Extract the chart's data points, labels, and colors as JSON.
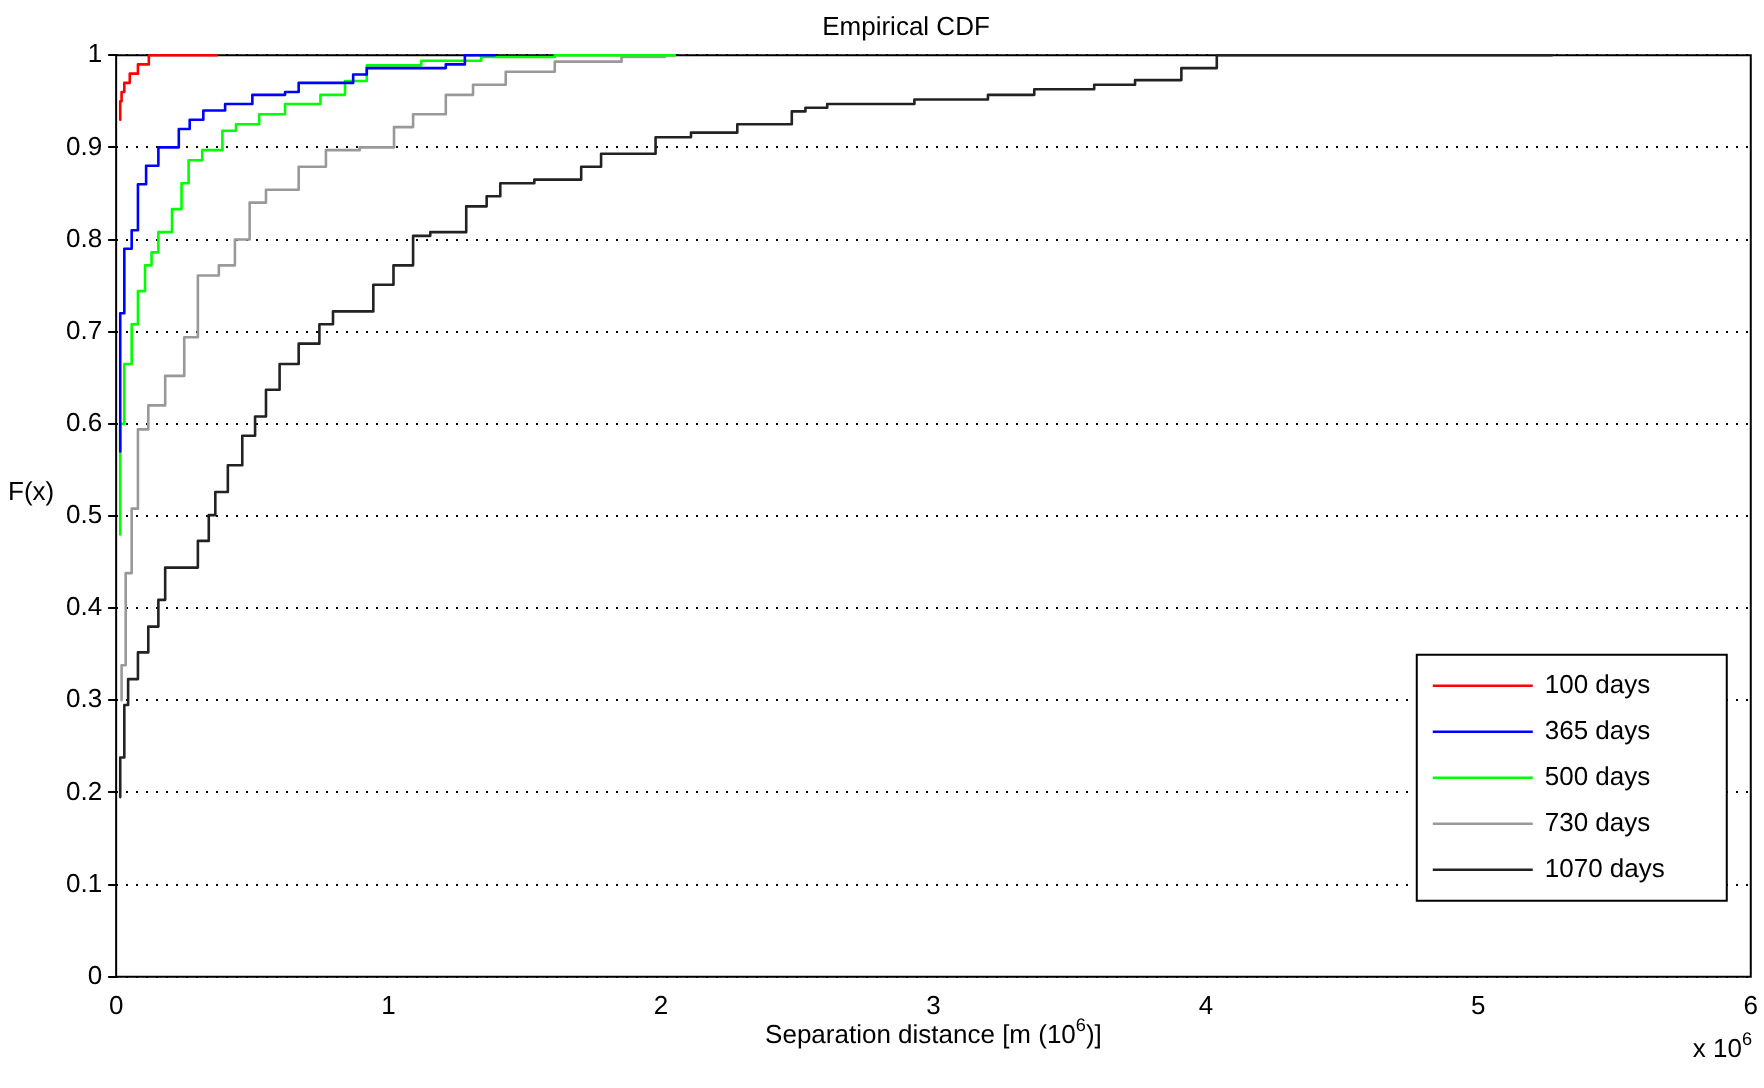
{
  "chart_data": {
    "type": "step",
    "title": "Empirical CDF",
    "xlabel": "Separation distance [m (10$^{6}$)]",
    "ylabel": "F(x)",
    "xlim": [
      0,
      6
    ],
    "xticks": [
      0,
      1,
      2,
      3,
      4,
      5,
      6
    ],
    "ylim": [
      0,
      1
    ],
    "yticks": [
      0,
      0.1,
      0.2,
      0.3,
      0.4,
      0.5,
      0.6,
      0.7,
      0.8,
      0.9,
      1
    ],
    "grid": "y",
    "legend": "bottom right",
    "annotations": [
      "x 10$^{6}$"
    ],
    "series": [
      {
        "name": "100 days",
        "color": "#ff0000",
        "x": [
          0.015,
          0.02,
          0.03,
          0.05,
          0.08,
          0.12,
          0.19,
          0.37
        ],
        "values": [
          0.93,
          0.95,
          0.96,
          0.97,
          0.98,
          0.99,
          1,
          1
        ]
      },
      {
        "name": "365 days",
        "color": "#0000ff",
        "x": [
          0.015,
          0.03,
          0.057,
          0.08,
          0.11,
          0.155,
          0.23,
          0.27,
          0.32,
          0.4,
          0.5,
          0.62,
          0.67,
          0.87,
          0.92,
          1.21,
          1.28,
          1.39
        ],
        "values": [
          0.57,
          0.72,
          0.79,
          0.81,
          0.86,
          0.88,
          0.9,
          0.92,
          0.93,
          0.94,
          0.947,
          0.957,
          0.96,
          0.97,
          0.979,
          0.986,
          0.99,
          1
        ]
      },
      {
        "name": "500 days",
        "color": "#00ff00",
        "x": [
          0.015,
          0.03,
          0.057,
          0.08,
          0.106,
          0.13,
          0.155,
          0.205,
          0.24,
          0.266,
          0.316,
          0.39,
          0.44,
          0.525,
          0.62,
          0.75,
          0.84,
          0.92,
          1.12,
          1.34,
          1.61,
          2.05
        ],
        "values": [
          0.48,
          0.6,
          0.665,
          0.708,
          0.744,
          0.772,
          0.786,
          0.808,
          0.833,
          0.861,
          0.886,
          0.897,
          0.918,
          0.925,
          0.936,
          0.947,
          0.957,
          0.972,
          0.989,
          0.994,
          0.998,
          1
        ]
      },
      {
        "name": "730 days",
        "color": "#999999",
        "x": [
          0.02,
          0.035,
          0.057,
          0.08,
          0.118,
          0.18,
          0.25,
          0.3,
          0.377,
          0.436,
          0.49,
          0.55,
          0.67,
          0.77,
          0.894,
          1.02,
          1.09,
          1.21,
          1.31,
          1.43,
          1.61,
          1.855,
          2.015,
          2.05
        ],
        "values": [
          0.3,
          0.338,
          0.438,
          0.508,
          0.594,
          0.62,
          0.652,
          0.694,
          0.761,
          0.772,
          0.8,
          0.84,
          0.854,
          0.879,
          0.897,
          0.9,
          0.922,
          0.936,
          0.957,
          0.968,
          0.982,
          0.993,
          0.998,
          1
        ]
      },
      {
        "name": "1070 days",
        "color": "#222222",
        "x": [
          0.015,
          0.03,
          0.044,
          0.08,
          0.118,
          0.155,
          0.18,
          0.217,
          0.3,
          0.34,
          0.364,
          0.41,
          0.463,
          0.51,
          0.55,
          0.6,
          0.67,
          0.746,
          0.796,
          0.944,
          1.018,
          1.09,
          1.153,
          1.285,
          1.36,
          1.41,
          1.535,
          1.707,
          1.78,
          1.98,
          2.11,
          2.28,
          2.48,
          2.53,
          2.61,
          2.93,
          3.2,
          3.37,
          3.59,
          3.74,
          3.91,
          4.04,
          4.36,
          5.27
        ],
        "values": [
          0.195,
          0.238,
          0.295,
          0.323,
          0.352,
          0.38,
          0.409,
          0.444,
          0.444,
          0.473,
          0.501,
          0.526,
          0.555,
          0.587,
          0.608,
          0.637,
          0.665,
          0.687,
          0.708,
          0.722,
          0.751,
          0.772,
          0.804,
          0.808,
          0.836,
          0.847,
          0.861,
          0.865,
          0.879,
          0.893,
          0.911,
          0.916,
          0.925,
          0.939,
          0.943,
          0.947,
          0.952,
          0.957,
          0.963,
          0.968,
          0.973,
          0.986,
          1,
          1
        ]
      }
    ]
  }
}
